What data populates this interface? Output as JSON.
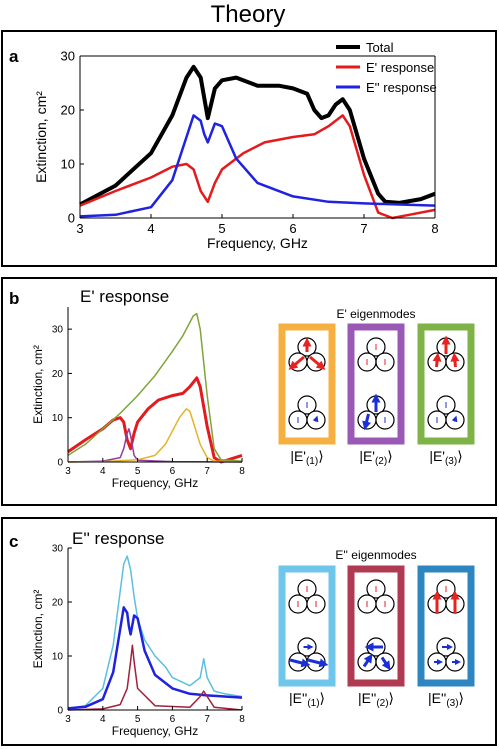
{
  "heading": "Theory",
  "panels": {
    "a": {
      "letter": "a",
      "chart_data": {
        "type": "line",
        "xlabel": "Frequency, GHz",
        "ylabel": "Extinction, cm²",
        "xlim": [
          3,
          8
        ],
        "ylim": [
          0,
          30
        ],
        "xticks": [
          "3",
          "4",
          "5",
          "6",
          "7",
          "8"
        ],
        "yticks": [
          "0",
          "10",
          "20",
          "30"
        ],
        "legend_placement": "top-right",
        "series": [
          {
            "name": "Total",
            "color": "#000000",
            "x": [
              3.0,
              3.5,
              4.0,
              4.3,
              4.5,
              4.6,
              4.7,
              4.8,
              4.9,
              5.0,
              5.2,
              5.5,
              5.8,
              6.0,
              6.2,
              6.3,
              6.4,
              6.5,
              6.6,
              6.7,
              6.8,
              7.0,
              7.2,
              7.3,
              7.5,
              7.8,
              8.0
            ],
            "y": [
              2.5,
              6.0,
              12.0,
              19.0,
              26.0,
              28.0,
              26.0,
              18.5,
              24.0,
              25.5,
              26.0,
              24.5,
              24.5,
              24.0,
              23.0,
              20.0,
              18.5,
              19.0,
              21.0,
              22.0,
              20.0,
              11.0,
              4.5,
              3.0,
              2.8,
              3.5,
              4.5
            ]
          },
          {
            "name": "E' response",
            "color": "#e41a1c",
            "x": [
              3.0,
              3.5,
              4.0,
              4.3,
              4.5,
              4.6,
              4.7,
              4.8,
              4.9,
              5.0,
              5.3,
              5.6,
              6.0,
              6.3,
              6.5,
              6.7,
              6.8,
              7.0,
              7.2,
              7.4,
              7.6,
              8.0
            ],
            "y": [
              2.3,
              5.0,
              7.5,
              9.5,
              10.0,
              9.0,
              5.0,
              3.0,
              6.5,
              9.0,
              12.0,
              14.0,
              15.0,
              15.5,
              17.0,
              19.0,
              17.0,
              8.0,
              1.0,
              0.0,
              0.5,
              1.5
            ]
          },
          {
            "name": "E'' response",
            "color": "#1f23e0",
            "x": [
              3.0,
              3.5,
              4.0,
              4.3,
              4.5,
              4.6,
              4.7,
              4.75,
              4.8,
              4.9,
              5.0,
              5.2,
              5.5,
              6.0,
              6.5,
              7.0,
              7.5,
              8.0
            ],
            "y": [
              0.3,
              0.6,
              2.0,
              7.0,
              15.0,
              19.0,
              18.0,
              15.5,
              14.0,
              17.5,
              17.0,
              11.0,
              6.5,
              4.0,
              3.0,
              2.7,
              2.5,
              2.3
            ]
          }
        ]
      }
    },
    "b": {
      "letter": "b",
      "chart_data": {
        "type": "line",
        "title": "E' response",
        "xlabel": "Frequency, GHz",
        "ylabel": "Extinction, cm²",
        "xlim": [
          3,
          8
        ],
        "ylim": [
          0,
          35
        ],
        "xticks": [
          "3",
          "4",
          "5",
          "6",
          "7",
          "8"
        ],
        "yticks": [
          "0",
          "10",
          "20",
          "30"
        ],
        "series": [
          {
            "color": "#e41a1c",
            "x": [
              3.0,
              3.5,
              4.0,
              4.3,
              4.5,
              4.6,
              4.7,
              4.8,
              4.9,
              5.0,
              5.3,
              5.6,
              6.0,
              6.3,
              6.5,
              6.7,
              6.8,
              7.0,
              7.2,
              7.4,
              7.6,
              8.0
            ],
            "y": [
              2.3,
              5.0,
              7.5,
              9.5,
              10.0,
              9.0,
              5.0,
              3.0,
              6.5,
              9.0,
              12.0,
              14.0,
              15.0,
              15.5,
              17.0,
              19.0,
              17.0,
              8.0,
              1.0,
              0.0,
              0.5,
              1.5
            ]
          },
          {
            "color": "#7fa53a",
            "x": [
              3.0,
              3.5,
              4.0,
              4.5,
              5.0,
              5.5,
              6.0,
              6.3,
              6.5,
              6.6,
              6.7,
              6.8,
              7.0,
              7.2,
              7.4,
              8.0
            ],
            "y": [
              1.5,
              4.0,
              7.5,
              11.0,
              15.0,
              19.5,
              25.0,
              28.5,
              31.5,
              33.0,
              33.5,
              30.0,
              15.0,
              3.0,
              0.5,
              0.2
            ]
          },
          {
            "color": "#8e3fa6",
            "x": [
              3.0,
              4.0,
              4.5,
              4.6,
              4.7,
              4.75,
              4.8,
              4.9,
              5.0,
              6.0,
              8.0
            ],
            "y": [
              0.0,
              0.2,
              1.0,
              3.0,
              6.5,
              7.5,
              6.0,
              1.5,
              0.4,
              0.1,
              0.0
            ]
          },
          {
            "color": "#e3b42a",
            "x": [
              3.0,
              4.0,
              5.0,
              5.5,
              5.8,
              6.0,
              6.2,
              6.4,
              6.5,
              6.6,
              6.8,
              7.0,
              7.2,
              8.0
            ],
            "y": [
              0.0,
              0.1,
              0.5,
              1.5,
              4.0,
              7.0,
              10.0,
              12.0,
              11.5,
              9.0,
              4.0,
              1.0,
              0.2,
              0.0
            ]
          }
        ]
      },
      "eigen_title": "E' eigenmodes",
      "eigenmodes": [
        {
          "label_base": "|E'",
          "label_sub": "(1)",
          "label_end": "⟩",
          "frame": "#f5b041"
        },
        {
          "label_base": "|E'",
          "label_sub": "(2)",
          "label_end": "⟩",
          "frame": "#9b59b6"
        },
        {
          "label_base": "|E'",
          "label_sub": "(3)",
          "label_end": "⟩",
          "frame": "#7fb347"
        }
      ]
    },
    "c": {
      "letter": "c",
      "chart_data": {
        "type": "line",
        "title": "E'' response",
        "xlabel": "Frequency, GHz",
        "ylabel": "Extinction, cm²",
        "xlim": [
          3,
          8
        ],
        "ylim": [
          0,
          30
        ],
        "xticks": [
          "3",
          "4",
          "5",
          "6",
          "7",
          "8"
        ],
        "yticks": [
          "0",
          "10",
          "20",
          "30"
        ],
        "series": [
          {
            "color": "#5bc0de",
            "x": [
              3.0,
              3.5,
              4.0,
              4.3,
              4.5,
              4.6,
              4.7,
              4.8,
              4.9,
              5.0,
              5.2,
              5.5,
              5.8,
              6.0,
              6.5,
              6.8,
              6.9,
              7.0,
              7.2,
              7.5,
              8.0
            ],
            "y": [
              0.3,
              0.8,
              4.0,
              12.0,
              22.0,
              27.0,
              28.5,
              26.0,
              21.0,
              17.0,
              13.0,
              10.0,
              8.0,
              6.0,
              4.5,
              6.0,
              9.5,
              6.0,
              3.5,
              3.0,
              2.5
            ]
          },
          {
            "color": "#1f23e0",
            "x": [
              3.0,
              3.5,
              4.0,
              4.3,
              4.5,
              4.6,
              4.7,
              4.75,
              4.8,
              4.9,
              5.0,
              5.2,
              5.5,
              6.0,
              6.5,
              7.0,
              7.5,
              8.0
            ],
            "y": [
              0.3,
              0.6,
              2.0,
              7.0,
              15.0,
              19.0,
              18.0,
              15.5,
              14.0,
              17.5,
              17.0,
              11.0,
              6.5,
              4.0,
              3.0,
              2.7,
              2.5,
              2.3
            ]
          },
          {
            "color": "#a3203a",
            "x": [
              3.0,
              4.0,
              4.5,
              4.7,
              4.8,
              4.85,
              4.9,
              5.0,
              5.5,
              6.5,
              6.8,
              6.9,
              7.0,
              7.2,
              8.0
            ],
            "y": [
              0.0,
              0.2,
              1.0,
              4.0,
              9.0,
              12.0,
              9.0,
              4.0,
              0.8,
              0.5,
              2.5,
              3.5,
              2.5,
              0.5,
              0.0
            ]
          }
        ]
      },
      "eigen_title": "E'' eigenmodes",
      "eigenmodes": [
        {
          "label_base": "|E''",
          "label_sub": "(1)",
          "label_end": "⟩",
          "frame": "#6ec6ea"
        },
        {
          "label_base": "|E''",
          "label_sub": "(2)",
          "label_end": "⟩",
          "frame": "#b03a52"
        },
        {
          "label_base": "|E''",
          "label_sub": "(3)",
          "label_end": "⟩",
          "frame": "#2e86c1"
        }
      ]
    }
  }
}
